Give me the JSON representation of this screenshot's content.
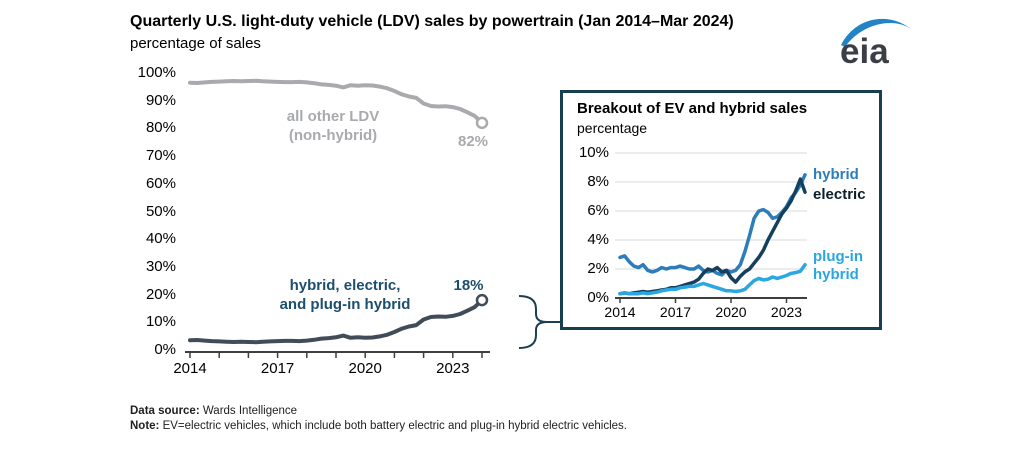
{
  "header": {
    "title": "Quarterly U.S. light-duty vehicle (LDV) sales by powertrain (Jan 2014–Mar 2024)",
    "subtitle": "percentage of sales"
  },
  "logo": {
    "text": "eia",
    "swoosh_color": "#2283c5",
    "text_color": "#3a3f45"
  },
  "footer": {
    "source_label": "Data source:",
    "source_text": " Wards Intelligence",
    "note_label": "Note:",
    "note_text": " EV=electric vehicles, which include both battery electric and plug-in hybrid electric vehicles."
  },
  "chart_data": [
    {
      "id": "main",
      "type": "line",
      "title": "Quarterly U.S. light-duty vehicle (LDV) sales by powertrain (Jan 2014–Mar 2024)",
      "ylabel": "percentage of sales",
      "x_start": 2014,
      "x_step": 0.25,
      "xlim": [
        2014,
        2024.3
      ],
      "ylim": [
        0,
        100
      ],
      "grid": false,
      "y_ticks": [
        0,
        10,
        20,
        30,
        40,
        50,
        60,
        70,
        80,
        90,
        100
      ],
      "y_tick_labels": [
        "0%",
        "10%",
        "20%",
        "30%",
        "40%",
        "50%",
        "60%",
        "70%",
        "80%",
        "90%",
        "100%"
      ],
      "x_ticks": [
        2014,
        2015,
        2016,
        2017,
        2018,
        2019,
        2020,
        2021,
        2022,
        2023,
        2024
      ],
      "x_labeled_ticks": [
        2014,
        2017,
        2020,
        2023
      ],
      "series": [
        {
          "name": "all other LDV (non-hybrid)",
          "color": "#a8aaad",
          "end_label": "82%",
          "end_marker": true,
          "label_line1": "all other LDV",
          "label_line2": "(non-hybrid)",
          "values": [
            96.5,
            96.4,
            96.6,
            96.8,
            96.9,
            97.0,
            97.1,
            97.0,
            97.1,
            97.2,
            97.0,
            96.9,
            96.8,
            96.7,
            96.7,
            96.8,
            96.6,
            96.3,
            95.9,
            95.7,
            95.4,
            94.8,
            95.6,
            95.4,
            95.6,
            95.5,
            95.1,
            94.5,
            93.5,
            92.3,
            91.5,
            91.0,
            89.0,
            88.1,
            87.9,
            88.0,
            87.7,
            87.0,
            85.8,
            84.5,
            82.0
          ]
        },
        {
          "name": "hybrid, electric, and plug-in hybrid",
          "color": "#414c59",
          "label_color": "#1c4e6e",
          "end_label": "18%",
          "end_marker": true,
          "label_line1": "hybrid, electric,",
          "label_line2": "and plug-in hybrid",
          "values": [
            3.5,
            3.6,
            3.4,
            3.2,
            3.1,
            3.0,
            2.9,
            3.0,
            2.9,
            2.8,
            3.0,
            3.1,
            3.2,
            3.3,
            3.3,
            3.2,
            3.4,
            3.7,
            4.1,
            4.3,
            4.6,
            5.2,
            4.4,
            4.6,
            4.4,
            4.5,
            4.9,
            5.5,
            6.5,
            7.7,
            8.5,
            9.0,
            11.0,
            11.9,
            12.1,
            12.0,
            12.3,
            13.0,
            14.2,
            15.5,
            18.0
          ]
        }
      ]
    },
    {
      "id": "inset",
      "type": "line",
      "title": "Breakout of EV and hybrid sales",
      "ylabel": "percentage",
      "x_start": 2014,
      "x_step": 0.25,
      "xlim": [
        2014,
        2024.3
      ],
      "ylim": [
        0,
        10
      ],
      "grid": true,
      "y_ticks": [
        0,
        2,
        4,
        6,
        8,
        10
      ],
      "y_tick_labels": [
        "0%",
        "2%",
        "4%",
        "6%",
        "8%",
        "10%"
      ],
      "x_ticks": [
        2014,
        2017,
        2020,
        2023
      ],
      "x_labeled_ticks": [
        2014,
        2017,
        2020,
        2023
      ],
      "series": [
        {
          "name": "hybrid",
          "color": "#2d7dbb",
          "label_line1": "hybrid",
          "label_line2": "",
          "values": [
            2.8,
            2.9,
            2.5,
            2.2,
            2.1,
            2.3,
            1.9,
            1.8,
            1.9,
            2.1,
            2.0,
            2.1,
            2.1,
            2.2,
            2.1,
            2.0,
            2.0,
            2.2,
            1.9,
            1.8,
            1.9,
            1.7,
            1.6,
            1.9,
            1.8,
            1.9,
            2.3,
            3.2,
            4.3,
            5.5,
            6.0,
            6.1,
            5.9,
            5.5,
            5.6,
            5.9,
            6.3,
            6.9,
            7.3,
            7.8,
            8.5
          ]
        },
        {
          "name": "electric",
          "color": "#14405e",
          "label_color": "#0e1e2b",
          "label_line1": "electric",
          "label_line2": "",
          "values": [
            0.3,
            0.35,
            0.3,
            0.35,
            0.4,
            0.45,
            0.4,
            0.45,
            0.5,
            0.55,
            0.6,
            0.7,
            0.7,
            0.8,
            0.9,
            1.0,
            1.1,
            1.3,
            1.7,
            2.0,
            1.9,
            2.1,
            1.8,
            1.9,
            1.4,
            1.1,
            1.5,
            1.8,
            2.0,
            2.4,
            2.8,
            3.3,
            4.0,
            4.6,
            5.2,
            5.8,
            6.2,
            6.7,
            7.4,
            8.2,
            7.3
          ]
        },
        {
          "name": "plug-in hybrid",
          "color": "#2aa7e0",
          "label_line1": "plug-in",
          "label_line2": "hybrid",
          "values": [
            0.3,
            0.35,
            0.3,
            0.3,
            0.3,
            0.35,
            0.3,
            0.35,
            0.4,
            0.5,
            0.55,
            0.6,
            0.6,
            0.7,
            0.75,
            0.8,
            0.8,
            0.9,
            1.0,
            0.9,
            0.8,
            0.7,
            0.6,
            0.5,
            0.5,
            0.45,
            0.5,
            0.6,
            0.9,
            1.2,
            1.35,
            1.25,
            1.3,
            1.45,
            1.35,
            1.45,
            1.55,
            1.7,
            1.75,
            1.85,
            2.3
          ]
        }
      ]
    }
  ]
}
